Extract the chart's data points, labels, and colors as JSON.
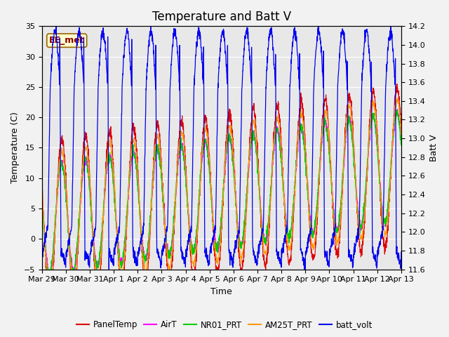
{
  "title": "Temperature and Batt V",
  "xlabel": "Time",
  "ylabel_left": "Temperature (C)",
  "ylabel_right": "Batt V",
  "station_label": "EE_met",
  "ylim_left": [
    -5,
    35
  ],
  "ylim_right": [
    11.6,
    14.2
  ],
  "x_tick_labels": [
    "Mar 29",
    "Mar 30",
    "Mar 31",
    "Apr 1",
    "Apr 2",
    "Apr 3",
    "Apr 4",
    "Apr 5",
    "Apr 6",
    "Apr 7",
    "Apr 8",
    "Apr 9",
    "Apr 10",
    "Apr 11",
    "Apr 12",
    "Apr 13"
  ],
  "colors": {
    "PanelTemp": "#dd0000",
    "AirT": "#ff00ff",
    "NR01_PRT": "#00cc00",
    "AM25T_PRT": "#ff9900",
    "batt_volt": "#0000ee"
  },
  "legend_labels": [
    "PanelTemp",
    "AirT",
    "NR01_PRT",
    "AM25T_PRT",
    "batt_volt"
  ],
  "plot_bg_color": "#e8e8e8",
  "fig_bg_color": "#f2f2f2",
  "title_fontsize": 12,
  "label_fontsize": 9,
  "tick_fontsize": 8
}
